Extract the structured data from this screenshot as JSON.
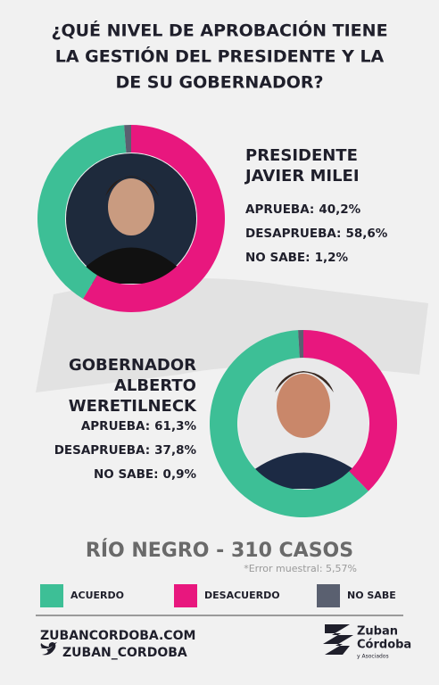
{
  "title": [
    "¿QUÉ NIVEL DE APROBACIÓN TIENE",
    "LA GESTIÓN DEL PRESIDENTE Y LA",
    "DE SU GOBERNADOR?"
  ],
  "chart_data": [
    {
      "type": "pie",
      "label": [
        "PRESIDENTE",
        "JAVIER MILEI"
      ],
      "categories": [
        "APRUEBA:",
        "DESAPRUEBA:",
        "NO SABE:"
      ],
      "values": [
        40.2,
        58.6,
        1.2
      ],
      "value_labels": [
        "40,2%",
        "58,6%",
        "1,2%"
      ]
    },
    {
      "type": "pie",
      "label": [
        "GOBERNADOR",
        "ALBERTO",
        "WERETILNECK"
      ],
      "categories": [
        "APRUEBA:",
        "DESAPRUEBA:",
        "NO SABE:"
      ],
      "values": [
        61.3,
        37.8,
        0.9
      ],
      "value_labels": [
        "61,3%",
        "37,8%",
        "0,9%"
      ]
    }
  ],
  "legend": [
    {
      "name": "ACUERDO",
      "color": "#3dbf96"
    },
    {
      "name": "DESACUERDO",
      "color": "#e8177e"
    },
    {
      "name": "NO SABE",
      "color": "#5a6070"
    }
  ],
  "sample": {
    "title": "RÍO NEGRO - 310 CASOS",
    "note": "*Error muestral: 5,57%"
  },
  "footer": {
    "web": "ZUBANCORDOBA.COM",
    "twitter": "ZUBAN_CORDOBA",
    "brand": [
      "Zuban",
      "Córdoba",
      "y Asociados"
    ]
  }
}
